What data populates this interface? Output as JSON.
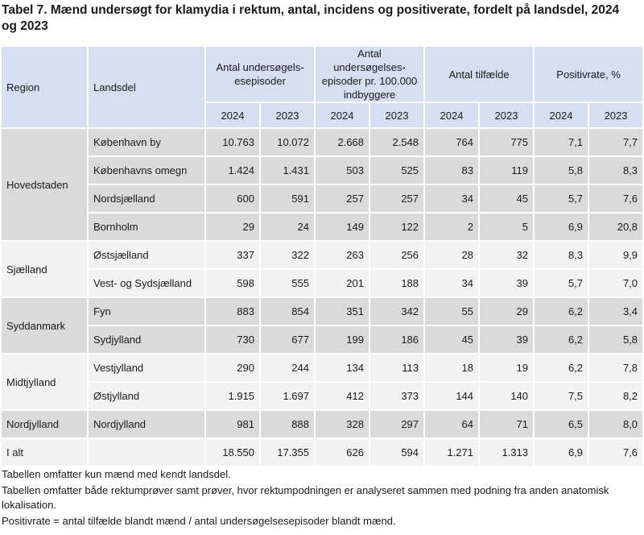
{
  "title": "Tabel 7. Mænd undersøgt for klamydia i rektum, antal, incidens og positiverate, fordelt på landsdel, 2024 og 2023",
  "header": {
    "region": "Region",
    "landsdel": "Landsdel",
    "groups": [
      "Antal undersøgels-esepisoder",
      "Antal undersøgelses-episoder pr. 100.000 indbyggere",
      "Antal tilfælde",
      "Positivrate, %"
    ],
    "years": [
      "2024",
      "2023",
      "2024",
      "2023",
      "2024",
      "2023",
      "2024",
      "2023"
    ]
  },
  "regions": [
    {
      "name": "Hovedstaden",
      "rows": [
        {
          "landsdel": "København by",
          "values": [
            "10.763",
            "10.072",
            "2.668",
            "2.548",
            "764",
            "775",
            "7,1",
            "7,7"
          ]
        },
        {
          "landsdel": "Københavns omegn",
          "values": [
            "1.424",
            "1.431",
            "503",
            "525",
            "83",
            "119",
            "5,8",
            "8,3"
          ]
        },
        {
          "landsdel": "Nordsjælland",
          "values": [
            "600",
            "591",
            "257",
            "257",
            "34",
            "45",
            "5,7",
            "7,6"
          ]
        },
        {
          "landsdel": "Bornholm",
          "values": [
            "29",
            "24",
            "149",
            "122",
            "2",
            "5",
            "6,9",
            "20,8"
          ]
        }
      ]
    },
    {
      "name": "Sjælland",
      "rows": [
        {
          "landsdel": "Østsjælland",
          "values": [
            "337",
            "322",
            "263",
            "256",
            "28",
            "32",
            "8,3",
            "9,9"
          ]
        },
        {
          "landsdel": "Vest- og Sydsjælland",
          "values": [
            "598",
            "555",
            "201",
            "188",
            "34",
            "39",
            "5,7",
            "7,0"
          ]
        }
      ]
    },
    {
      "name": "Syddanmark",
      "rows": [
        {
          "landsdel": "Fyn",
          "values": [
            "883",
            "854",
            "351",
            "342",
            "55",
            "29",
            "6,2",
            "3,4"
          ]
        },
        {
          "landsdel": "Sydjylland",
          "values": [
            "730",
            "677",
            "199",
            "186",
            "45",
            "39",
            "6,2",
            "5,8"
          ]
        }
      ]
    },
    {
      "name": "Midtjylland",
      "rows": [
        {
          "landsdel": "Vestjylland",
          "values": [
            "290",
            "244",
            "134",
            "113",
            "18",
            "19",
            "6,2",
            "7,8"
          ]
        },
        {
          "landsdel": "Østjylland",
          "values": [
            "1.915",
            "1.697",
            "412",
            "373",
            "144",
            "140",
            "7,5",
            "8,2"
          ]
        }
      ]
    },
    {
      "name": "Nordjylland",
      "rows": [
        {
          "landsdel": "Nordjylland",
          "values": [
            "981",
            "888",
            "328",
            "297",
            "64",
            "71",
            "6,5",
            "8,0"
          ]
        }
      ]
    }
  ],
  "total": {
    "label": "I alt",
    "values": [
      "18.550",
      "17.355",
      "626",
      "594",
      "1.271",
      "1.313",
      "6,9",
      "7,6"
    ]
  },
  "notes": [
    "Tabellen omfatter kun mænd med kendt landsdel.",
    "Tabellen omfatter både rektumprøver samt prøver, hvor rektumpodningen er analyseret sammen med podning fra anden anatomisk lokalisation.",
    "Positivrate = antal tilfælde blandt mænd / antal undersøgelsesepisoder blandt mænd."
  ],
  "colors": {
    "header_bg": "#d6def2",
    "band_dark": "#dadada",
    "band_light": "#f2f2f2"
  }
}
